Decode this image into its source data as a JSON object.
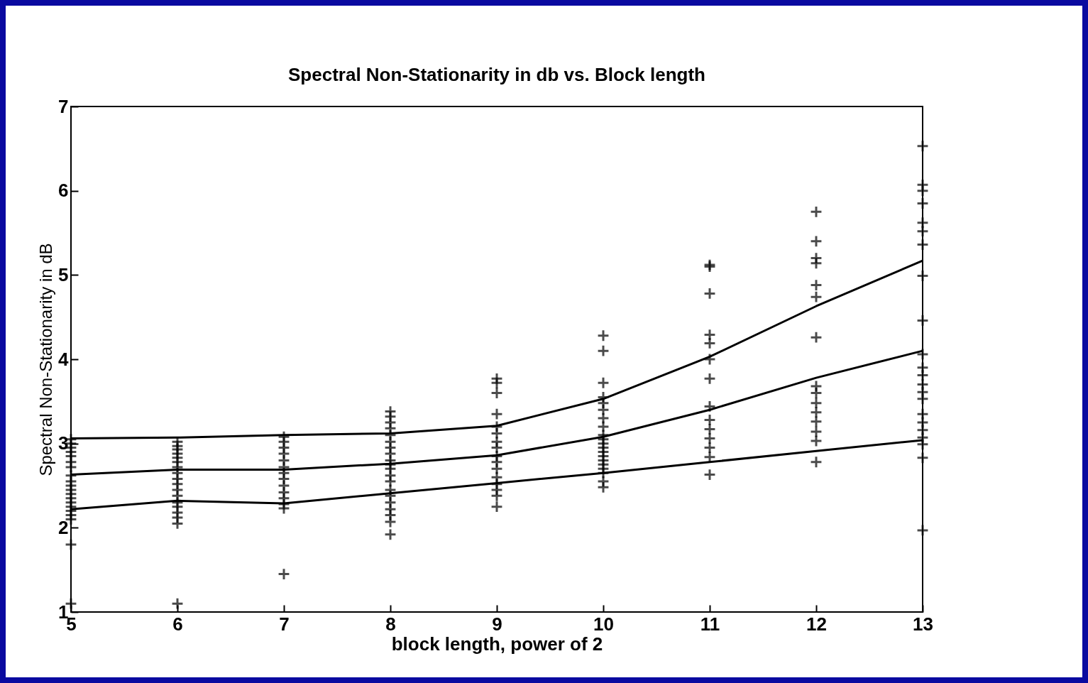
{
  "chart_data": {
    "type": "scatter",
    "title": "Spectral Non-Stationarity in db vs. Block length",
    "xlabel": "block length, power of 2",
    "ylabel": "Spectral Non-Stationarity in dB",
    "x": [
      5,
      6,
      7,
      8,
      9,
      10,
      11,
      12,
      13
    ],
    "xlim": [
      5,
      13
    ],
    "xticks": [
      5,
      6,
      7,
      8,
      9,
      10,
      11,
      12,
      13
    ],
    "ylim": [
      1,
      7
    ],
    "yticks": [
      1,
      2,
      3,
      4,
      5,
      6,
      7
    ],
    "grid": false,
    "series": [
      {
        "marker": "cross",
        "color": "#000000",
        "x": [
          5,
          5,
          5,
          5,
          5,
          5,
          5,
          5,
          5,
          5,
          5,
          5,
          5,
          5,
          5,
          5,
          5,
          5,
          5,
          5,
          6,
          6,
          6,
          6,
          6,
          6,
          6,
          6,
          6,
          6,
          6,
          6,
          6,
          6,
          6,
          6,
          6,
          6,
          7,
          7,
          7,
          7,
          7,
          7,
          7,
          7,
          7,
          7,
          7,
          7,
          7,
          7,
          8,
          8,
          8,
          8,
          8,
          8,
          8,
          8,
          8,
          8,
          8,
          8,
          8,
          8,
          8,
          8,
          8,
          8,
          8,
          8,
          9,
          9,
          9,
          9,
          9,
          9,
          9,
          9,
          9,
          9,
          9,
          9,
          9,
          9,
          9,
          9,
          10,
          10,
          10,
          10,
          10,
          10,
          10,
          10,
          10,
          10,
          10,
          10,
          10,
          10,
          10,
          10,
          10,
          10,
          10,
          10,
          11,
          11,
          11,
          11,
          11,
          11,
          11,
          11,
          11,
          11,
          11,
          11,
          11,
          11,
          12,
          12,
          12,
          12,
          12,
          12,
          12,
          12,
          12,
          12,
          12,
          12,
          12,
          12,
          12,
          13,
          13,
          13,
          13,
          13,
          13,
          13,
          13,
          13,
          13,
          13,
          13,
          13,
          13,
          13,
          13,
          13,
          13,
          13,
          13,
          13,
          13
        ],
        "values": [
          3.05,
          3.0,
          2.95,
          2.9,
          2.85,
          2.78,
          2.72,
          2.62,
          2.55,
          2.5,
          2.45,
          2.4,
          2.35,
          2.3,
          2.25,
          2.2,
          2.15,
          2.1,
          1.8,
          1.1,
          3.02,
          2.97,
          2.93,
          2.88,
          2.83,
          2.78,
          2.72,
          2.65,
          2.58,
          2.52,
          2.45,
          2.38,
          2.3,
          2.25,
          2.18,
          2.12,
          2.05,
          1.1,
          3.08,
          3.02,
          2.95,
          2.88,
          2.8,
          2.72,
          2.65,
          2.58,
          2.5,
          2.42,
          2.35,
          2.28,
          2.23,
          1.45,
          3.38,
          3.32,
          3.25,
          3.18,
          3.1,
          3.02,
          2.95,
          2.88,
          2.8,
          2.75,
          2.7,
          2.62,
          2.55,
          2.45,
          2.38,
          2.3,
          2.22,
          2.15,
          2.07,
          1.92,
          3.77,
          3.72,
          3.6,
          3.35,
          3.2,
          3.12,
          3.02,
          2.95,
          2.85,
          2.78,
          2.7,
          2.6,
          2.52,
          2.45,
          2.38,
          2.25,
          4.28,
          4.1,
          3.72,
          3.55,
          3.48,
          3.4,
          3.3,
          3.2,
          3.1,
          3.05,
          3.0,
          2.95,
          2.9,
          2.85,
          2.8,
          2.75,
          2.7,
          2.65,
          2.55,
          2.48,
          5.12,
          5.1,
          4.78,
          4.29,
          4.19,
          4.0,
          3.77,
          3.44,
          3.28,
          3.17,
          3.06,
          2.95,
          2.84,
          2.63,
          5.75,
          5.4,
          5.2,
          5.14,
          4.88,
          4.74,
          4.26,
          3.68,
          3.6,
          3.48,
          3.37,
          3.26,
          3.14,
          3.03,
          2.78,
          6.53,
          6.07,
          6.0,
          5.85,
          5.62,
          5.52,
          5.36,
          4.99,
          4.46,
          4.06,
          3.9,
          3.81,
          3.7,
          3.61,
          3.53,
          3.35,
          3.25,
          3.16,
          3.07,
          2.99,
          2.83,
          1.97
        ]
      },
      {
        "type": "line",
        "marker": "none",
        "color": "#000000",
        "values": [
          3.06,
          3.07,
          3.1,
          3.12,
          3.21,
          3.53,
          4.03,
          4.63,
          5.17
        ]
      },
      {
        "type": "line",
        "marker": "none",
        "color": "#000000",
        "values": [
          2.63,
          2.69,
          2.69,
          2.76,
          2.86,
          3.08,
          3.4,
          3.78,
          4.1
        ]
      },
      {
        "type": "line",
        "marker": "none",
        "color": "#000000",
        "values": [
          2.22,
          2.32,
          2.29,
          2.41,
          2.53,
          2.65,
          2.78,
          2.91,
          3.04
        ]
      }
    ]
  }
}
